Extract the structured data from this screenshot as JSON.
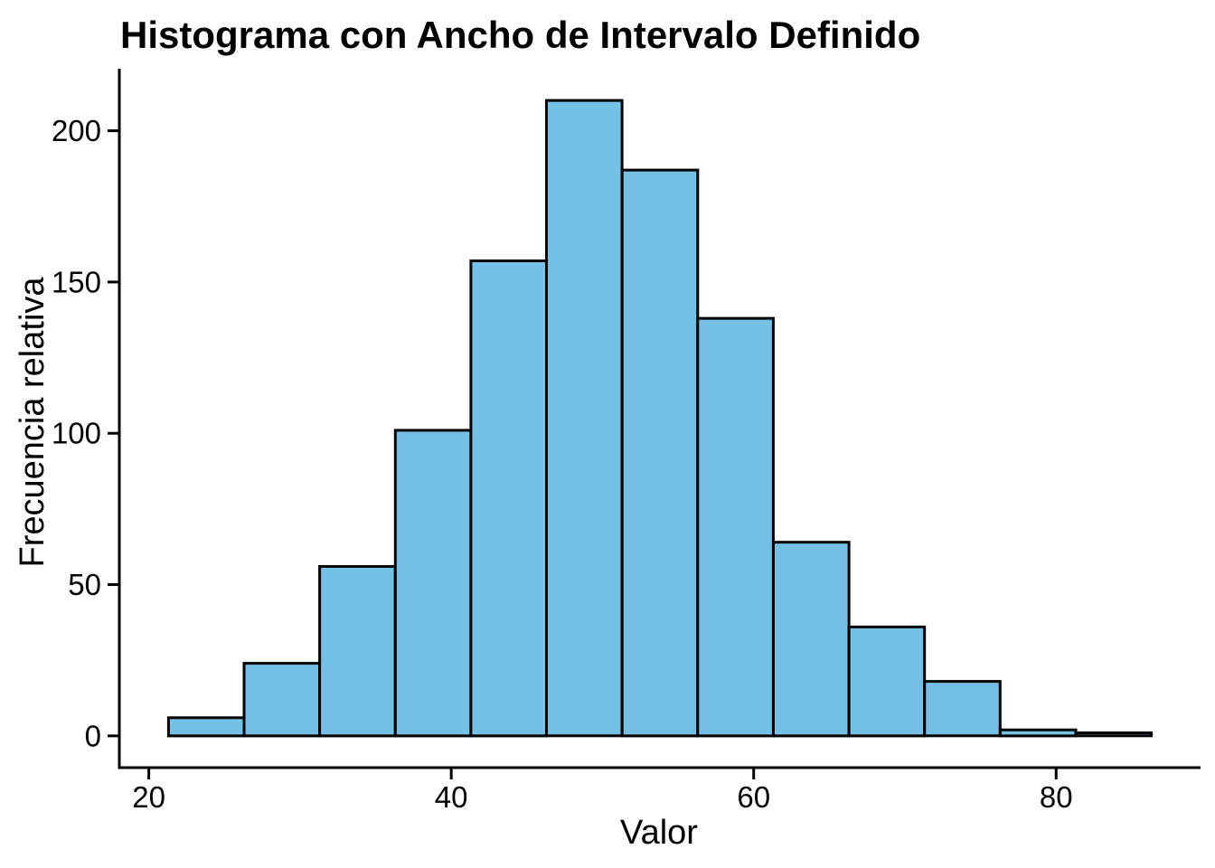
{
  "chart_data": {
    "type": "bar",
    "subtype": "histogram",
    "title": "Histograma con Ancho de Intervalo Definido",
    "xlabel": "Valor",
    "ylabel": "Frecuencia relativa",
    "bin_width": 5,
    "bin_edges": [
      21.3,
      26.3,
      31.3,
      36.3,
      41.3,
      46.3,
      51.3,
      56.3,
      61.3,
      66.3,
      71.3,
      76.3,
      81.3,
      86.3
    ],
    "values": [
      6,
      24,
      56,
      101,
      157,
      210,
      187,
      138,
      64,
      36,
      18,
      2,
      1
    ],
    "x_ticks": [
      20,
      40,
      60,
      80
    ],
    "y_ticks": [
      0,
      50,
      100,
      150,
      200
    ],
    "xlim": [
      18.05,
      89.55
    ],
    "ylim": [
      -10.5,
      220.5
    ],
    "grid": false,
    "legend": false,
    "bar_fill": "#74C1E5",
    "bar_stroke": "#000000",
    "axis_color": "#000000",
    "background": "#FFFFFF"
  }
}
